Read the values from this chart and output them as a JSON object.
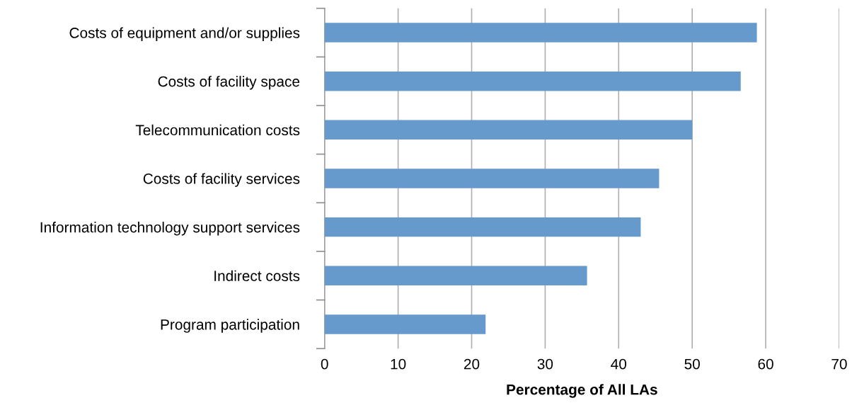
{
  "chart_data": {
    "type": "bar",
    "orientation": "horizontal",
    "xlabel": "Percentage of All LAs",
    "categories": [
      "Costs of equipment and/or supplies",
      "Costs of facility space",
      "Telecommunication costs",
      "Costs of facility services",
      "Information technology support services",
      "Indirect costs",
      "Program participation"
    ],
    "values": [
      58.8,
      56.6,
      50.0,
      45.5,
      43.0,
      35.7,
      21.9
    ],
    "color": "#6699cc",
    "xlim": [
      0,
      70
    ],
    "xticks": [
      0,
      10,
      20,
      30,
      40,
      50,
      60,
      70
    ],
    "grid": "x"
  }
}
